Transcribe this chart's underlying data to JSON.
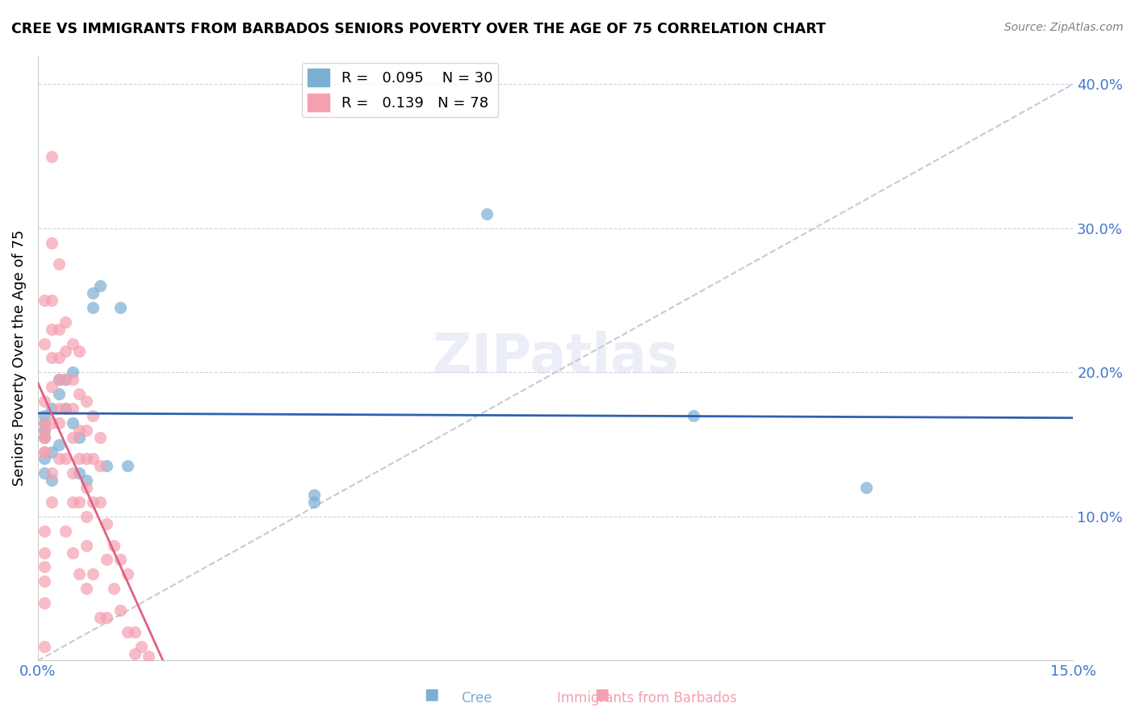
{
  "title": "CREE VS IMMIGRANTS FROM BARBADOS SENIORS POVERTY OVER THE AGE OF 75 CORRELATION CHART",
  "source": "Source: ZipAtlas.com",
  "xlabel_bottom": "",
  "ylabel": "Seniors Poverty Over the Age of 75",
  "legend_bottom": [
    "Cree",
    "Immigrants from Barbados"
  ],
  "xlim": [
    0.0,
    0.15
  ],
  "ylim": [
    0.0,
    0.42
  ],
  "xticks": [
    0.0,
    0.03,
    0.06,
    0.09,
    0.12,
    0.15
  ],
  "xticklabels": [
    "0.0%",
    "",
    "",
    "",
    "",
    "15.0%"
  ],
  "yticks": [
    0.0,
    0.1,
    0.2,
    0.3,
    0.4
  ],
  "yticklabels": [
    "",
    "10.0%",
    "20.0%",
    "30.0%",
    "40.0%"
  ],
  "cree_color": "#7bafd4",
  "barbados_color": "#f4a0b0",
  "cree_line_color": "#3060b0",
  "barbados_line_color": "#e06080",
  "trendline_color": "#c8c8d8",
  "R_cree": "0.095",
  "N_cree": "30",
  "R_barbados": "0.139",
  "N_barbados": "78",
  "watermark": "ZIPatlas",
  "cree_x": [
    0.001,
    0.001,
    0.001,
    0.001,
    0.001,
    0.001,
    0.002,
    0.002,
    0.002,
    0.003,
    0.003,
    0.003,
    0.004,
    0.004,
    0.005,
    0.005,
    0.006,
    0.006,
    0.007,
    0.008,
    0.008,
    0.009,
    0.01,
    0.012,
    0.013,
    0.04,
    0.04,
    0.065,
    0.095,
    0.12
  ],
  "cree_y": [
    0.155,
    0.16,
    0.165,
    0.17,
    0.13,
    0.14,
    0.175,
    0.145,
    0.125,
    0.195,
    0.185,
    0.15,
    0.195,
    0.175,
    0.2,
    0.165,
    0.155,
    0.13,
    0.125,
    0.255,
    0.245,
    0.26,
    0.135,
    0.245,
    0.135,
    0.115,
    0.11,
    0.31,
    0.17,
    0.12
  ],
  "barbados_x": [
    0.001,
    0.001,
    0.001,
    0.001,
    0.001,
    0.001,
    0.001,
    0.001,
    0.001,
    0.001,
    0.001,
    0.001,
    0.001,
    0.001,
    0.001,
    0.002,
    0.002,
    0.002,
    0.002,
    0.002,
    0.002,
    0.002,
    0.002,
    0.002,
    0.003,
    0.003,
    0.003,
    0.003,
    0.003,
    0.003,
    0.003,
    0.004,
    0.004,
    0.004,
    0.004,
    0.004,
    0.004,
    0.005,
    0.005,
    0.005,
    0.005,
    0.005,
    0.005,
    0.005,
    0.006,
    0.006,
    0.006,
    0.006,
    0.006,
    0.006,
    0.007,
    0.007,
    0.007,
    0.007,
    0.007,
    0.007,
    0.007,
    0.008,
    0.008,
    0.008,
    0.008,
    0.009,
    0.009,
    0.009,
    0.009,
    0.01,
    0.01,
    0.01,
    0.011,
    0.011,
    0.012,
    0.012,
    0.013,
    0.013,
    0.014,
    0.014,
    0.015,
    0.016
  ],
  "barbados_y": [
    0.155,
    0.16,
    0.165,
    0.155,
    0.145,
    0.25,
    0.22,
    0.18,
    0.145,
    0.09,
    0.075,
    0.065,
    0.055,
    0.04,
    0.01,
    0.35,
    0.29,
    0.25,
    0.23,
    0.21,
    0.19,
    0.165,
    0.13,
    0.11,
    0.275,
    0.23,
    0.21,
    0.195,
    0.175,
    0.165,
    0.14,
    0.235,
    0.215,
    0.195,
    0.175,
    0.14,
    0.09,
    0.22,
    0.195,
    0.175,
    0.155,
    0.13,
    0.11,
    0.075,
    0.215,
    0.185,
    0.16,
    0.14,
    0.11,
    0.06,
    0.18,
    0.16,
    0.14,
    0.12,
    0.1,
    0.08,
    0.05,
    0.17,
    0.14,
    0.11,
    0.06,
    0.155,
    0.135,
    0.11,
    0.03,
    0.095,
    0.07,
    0.03,
    0.08,
    0.05,
    0.07,
    0.035,
    0.06,
    0.02,
    0.02,
    0.005,
    0.01,
    0.003
  ]
}
